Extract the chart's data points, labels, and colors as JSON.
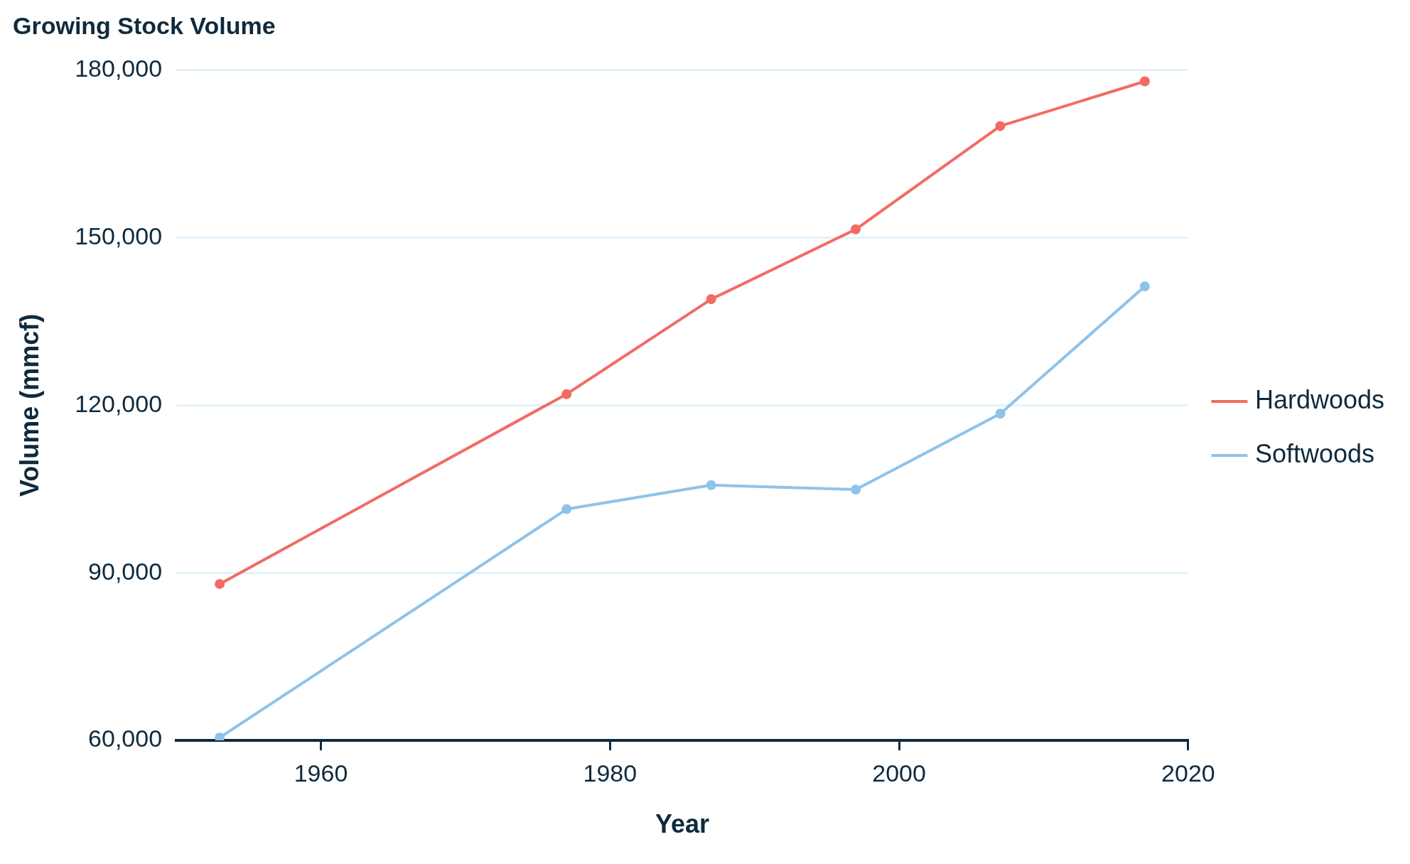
{
  "chart_data": {
    "type": "line",
    "title": "Growing Stock Volume",
    "xlabel": "Year",
    "ylabel": "Volume (mmcf)",
    "x": [
      1953,
      1977,
      1987,
      1997,
      2007,
      2017
    ],
    "series": [
      {
        "name": "Hardwoods",
        "color": "#f26b63",
        "values": [
          88000,
          122000,
          139000,
          151500,
          170000,
          178000
        ]
      },
      {
        "name": "Softwoods",
        "color": "#8ec3ea",
        "values": [
          60500,
          101400,
          105700,
          104900,
          118500,
          141300
        ]
      }
    ],
    "xlim": [
      1950,
      2020
    ],
    "xticks": [
      1960,
      1980,
      2000,
      2020
    ],
    "ylim": [
      60000,
      180000
    ],
    "yticks": [
      {
        "value": 60000,
        "label": "60,000"
      },
      {
        "value": 90000,
        "label": "90,000"
      },
      {
        "value": 120000,
        "label": "120,000"
      },
      {
        "value": 150000,
        "label": "150,000"
      },
      {
        "value": 180000,
        "label": "180,000"
      }
    ],
    "grid": "y",
    "legend": "right",
    "marker": "circle",
    "line_style": "solid"
  }
}
